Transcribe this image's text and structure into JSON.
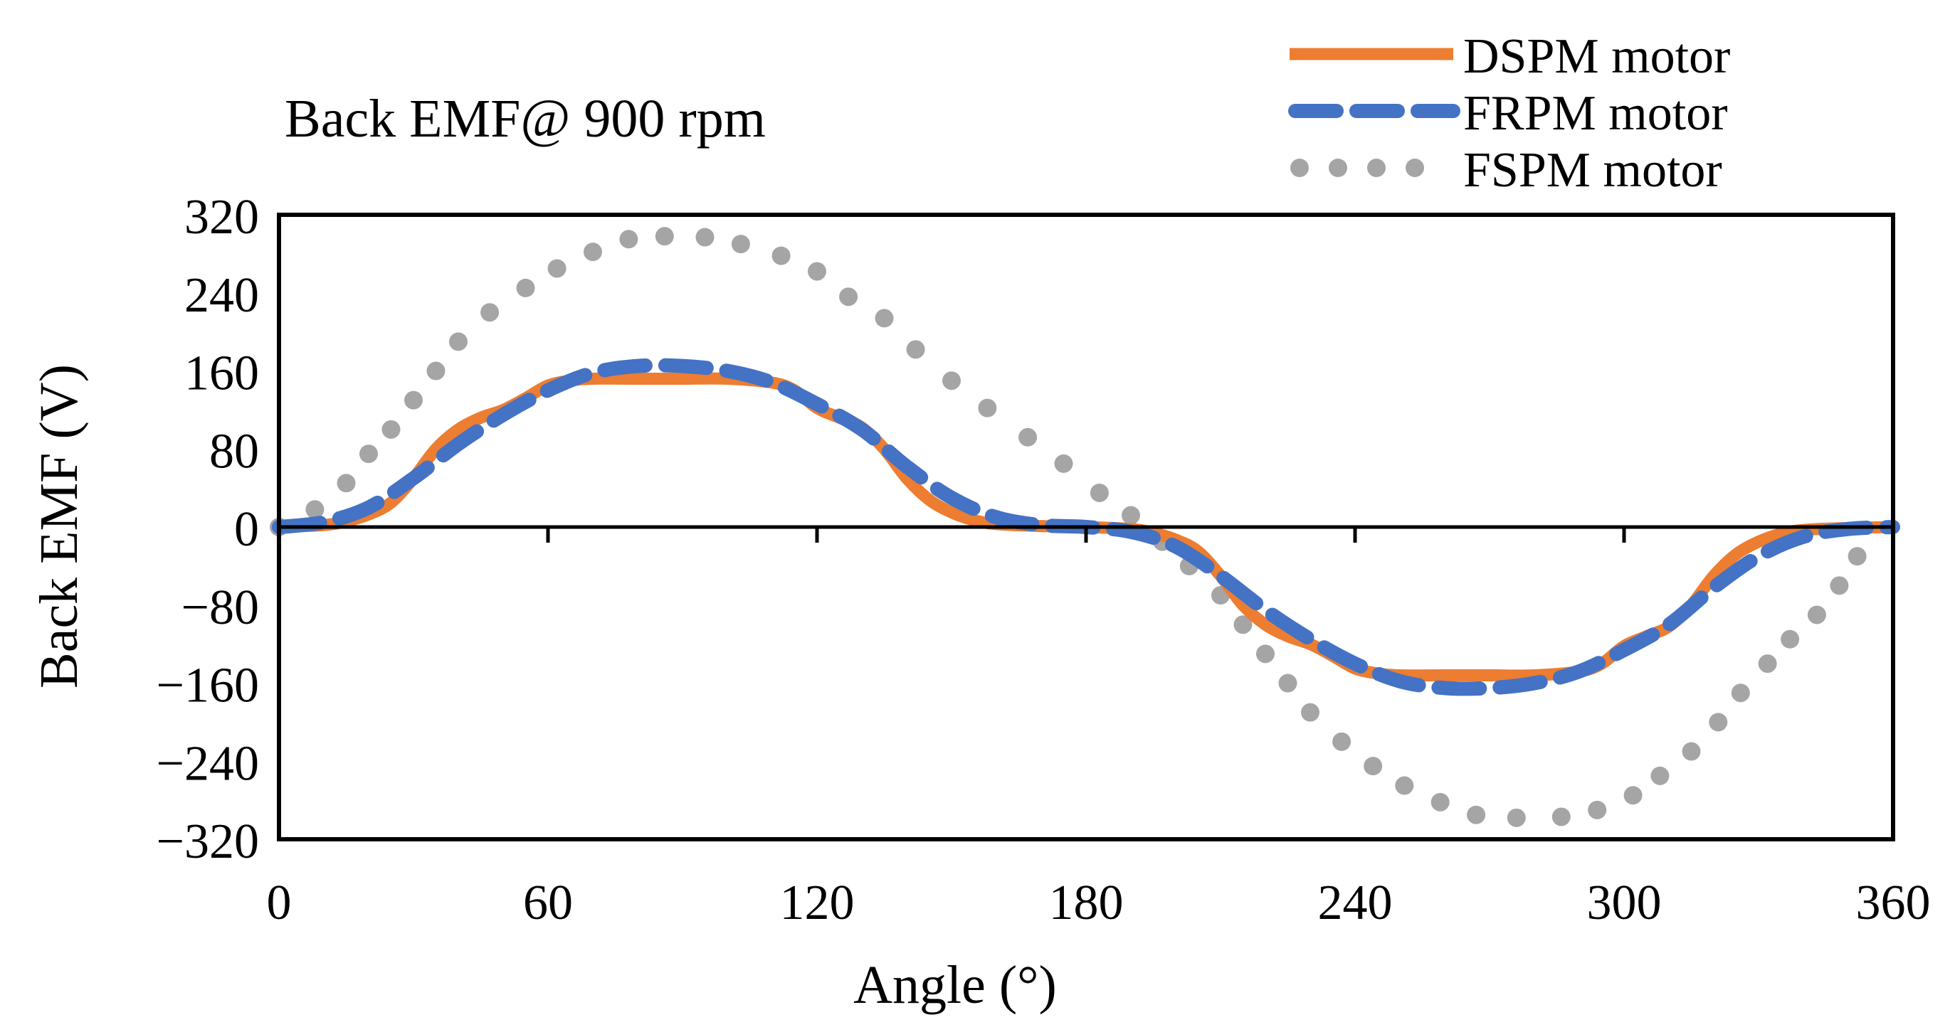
{
  "chart_data": {
    "type": "line",
    "title": "Back EMF@ 900 rpm",
    "xlabel": "Angle (°)",
    "ylabel": "Back EMF (V)",
    "xlim": [
      0,
      360
    ],
    "ylim": [
      -320,
      320
    ],
    "x_ticks": [
      0,
      60,
      120,
      180,
      240,
      300,
      360
    ],
    "x_tick_labels": [
      "0",
      "60",
      "120",
      "180",
      "240",
      "300",
      "360"
    ],
    "y_ticks": [
      320,
      240,
      160,
      80,
      0,
      -80,
      -160,
      -240,
      -320
    ],
    "y_tick_labels": [
      "320",
      "240",
      "160",
      "80",
      "0",
      "−80",
      "−160",
      "−240",
      "−320"
    ],
    "grid": false,
    "legend_position": "top-right",
    "series": [
      {
        "name": "DSPM motor",
        "style": "solid",
        "color": "#ED7D31",
        "x": [
          0,
          10,
          15,
          20,
          25,
          30,
          35,
          40,
          45,
          50,
          55,
          60,
          65,
          70,
          80,
          90,
          100,
          110,
          115,
          120,
          125,
          130,
          135,
          140,
          145,
          150,
          155,
          160,
          170,
          180,
          190,
          195,
          200,
          205,
          210,
          215,
          220,
          225,
          230,
          235,
          240,
          245,
          250,
          260,
          270,
          280,
          290,
          295,
          300,
          305,
          310,
          315,
          320,
          325,
          330,
          335,
          340,
          350,
          360
        ],
        "y": [
          0,
          2,
          6,
          13,
          25,
          50,
          80,
          100,
          112,
          120,
          132,
          145,
          150,
          152,
          152,
          152,
          152,
          148,
          140,
          122,
          112,
          102,
          80,
          50,
          28,
          15,
          7,
          3,
          1,
          0,
          -2,
          -6,
          -13,
          -25,
          -50,
          -80,
          -100,
          -112,
          -120,
          -132,
          -145,
          -150,
          -152,
          -152,
          -152,
          -152,
          -148,
          -140,
          -122,
          -112,
          -102,
          -80,
          -50,
          -28,
          -15,
          -7,
          -3,
          -1,
          0
        ]
      },
      {
        "name": "FRPM motor",
        "style": "dashed",
        "color": "#4472C4",
        "x": [
          0,
          10,
          20,
          30,
          40,
          50,
          60,
          70,
          80,
          90,
          100,
          110,
          120,
          130,
          140,
          150,
          160,
          170,
          180,
          190,
          200,
          210,
          220,
          230,
          240,
          250,
          260,
          270,
          280,
          290,
          300,
          310,
          320,
          330,
          340,
          350,
          360
        ],
        "y": [
          0,
          5,
          20,
          50,
          85,
          115,
          140,
          158,
          165,
          165,
          160,
          148,
          126,
          100,
          62,
          30,
          10,
          2,
          0,
          -5,
          -20,
          -50,
          -85,
          -115,
          -140,
          -158,
          -165,
          -165,
          -160,
          -148,
          -126,
          -100,
          -62,
          -30,
          -10,
          -2,
          0
        ]
      },
      {
        "name": "FSPM motor",
        "style": "dotted",
        "color": "#A5A5A5",
        "x": [
          0,
          8,
          15,
          20,
          25,
          30,
          35,
          40,
          47,
          55,
          62,
          70,
          78,
          86,
          95,
          103,
          112,
          120,
          127,
          135,
          142,
          150,
          158,
          167,
          175,
          183,
          190,
          197,
          203,
          210,
          215,
          220,
          225,
          230,
          237,
          244,
          251,
          259,
          267,
          276,
          286,
          294,
          302,
          308,
          315,
          321,
          326,
          332,
          337,
          343,
          348,
          352
        ],
        "y": [
          0,
          18,
          45,
          75,
          100,
          130,
          160,
          190,
          220,
          245,
          265,
          282,
          295,
          298,
          297,
          290,
          278,
          262,
          236,
          214,
          182,
          150,
          122,
          92,
          65,
          35,
          12,
          -15,
          -40,
          -70,
          -100,
          -130,
          -160,
          -190,
          -220,
          -245,
          -265,
          -282,
          -295,
          -298,
          -297,
          -290,
          -275,
          -255,
          -230,
          -200,
          -170,
          -140,
          -115,
          -90,
          -60,
          -30
        ]
      }
    ]
  }
}
